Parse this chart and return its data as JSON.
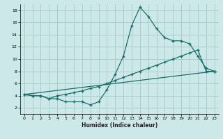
{
  "xlabel": "Humidex (Indice chaleur)",
  "bg_color": "#cce8e8",
  "grid_color": "#aacccc",
  "line_color": "#1a6e6a",
  "line1_x": [
    0,
    1,
    2,
    3,
    4,
    5,
    6,
    7,
    8,
    9,
    10,
    11,
    12,
    13,
    14,
    15,
    16,
    17,
    18,
    19,
    20,
    21,
    22,
    23
  ],
  "line1_y": [
    4.2,
    4.0,
    4.0,
    3.5,
    3.5,
    3.0,
    3.0,
    3.0,
    2.5,
    3.0,
    5.0,
    7.5,
    10.5,
    15.5,
    18.5,
    17.0,
    15.0,
    13.5,
    13.0,
    13.0,
    12.5,
    10.5,
    8.5,
    8.0
  ],
  "line2_x": [
    0,
    1,
    2,
    3,
    4,
    5,
    6,
    7,
    8,
    9,
    10,
    11,
    12,
    13,
    14,
    15,
    16,
    17,
    18,
    19,
    20,
    21,
    22,
    23
  ],
  "line2_y": [
    4.2,
    4.0,
    4.0,
    3.5,
    4.0,
    4.2,
    4.5,
    4.8,
    5.2,
    5.5,
    6.0,
    6.5,
    7.0,
    7.5,
    8.0,
    8.5,
    9.0,
    9.5,
    10.0,
    10.5,
    11.0,
    11.5,
    8.0,
    8.0
  ],
  "line3_x": [
    0,
    23
  ],
  "line3_y": [
    4.2,
    8.0
  ],
  "xlim": [
    -0.5,
    23.5
  ],
  "ylim": [
    1,
    19
  ],
  "yticks": [
    2,
    4,
    6,
    8,
    10,
    12,
    14,
    16,
    18
  ],
  "xticks": [
    0,
    1,
    2,
    3,
    4,
    5,
    6,
    7,
    8,
    9,
    10,
    11,
    12,
    13,
    14,
    15,
    16,
    17,
    18,
    19,
    20,
    21,
    22,
    23
  ]
}
